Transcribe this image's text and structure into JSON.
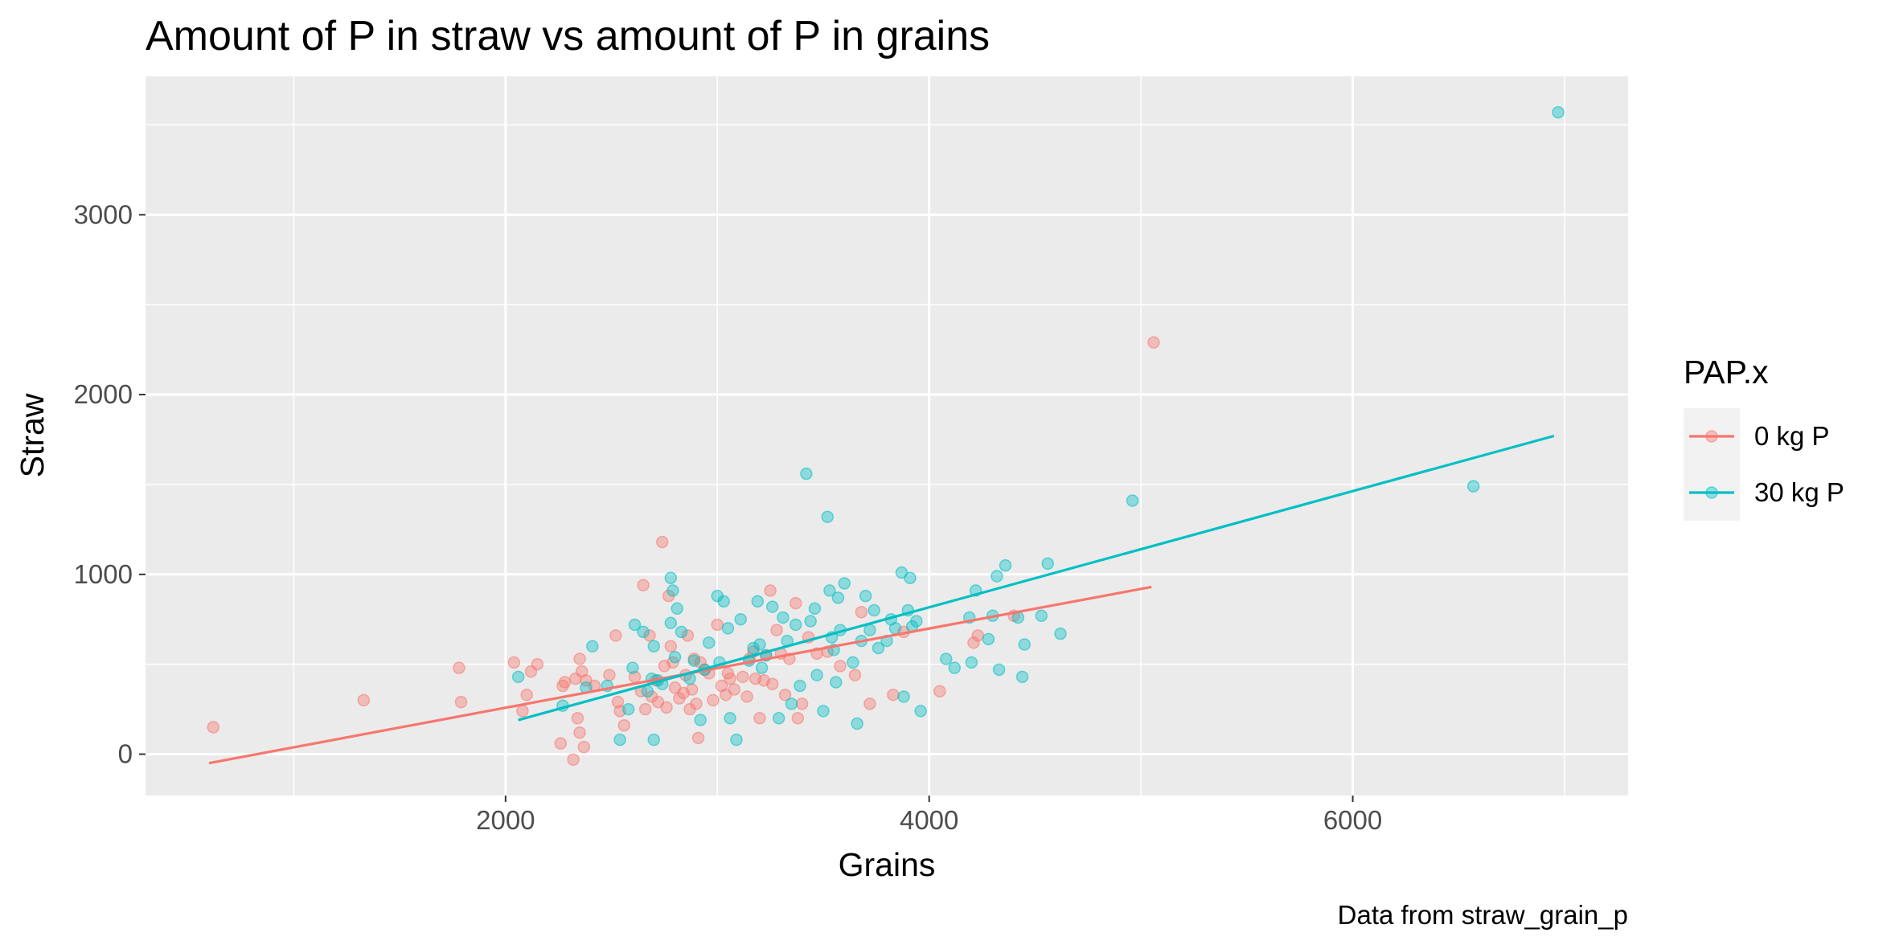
{
  "chart_data": {
    "type": "scatter",
    "title": "Amount of P in straw vs amount of P in grains",
    "xlabel": "Grains",
    "ylabel": "Straw",
    "caption": "Data from straw_grain_p",
    "xlim": [
      300,
      7300
    ],
    "ylim": [
      -230,
      3770
    ],
    "x_ticks": [
      2000,
      4000,
      6000
    ],
    "x_tick_labels": [
      "2000",
      "4000",
      "6000"
    ],
    "x_minor": [
      1000,
      3000,
      5000,
      7000
    ],
    "y_ticks": [
      0,
      1000,
      2000,
      3000
    ],
    "y_tick_labels": [
      "0",
      "1000",
      "2000",
      "3000"
    ],
    "y_minor": [
      500,
      1500,
      2500,
      3500
    ],
    "grid": true,
    "background": "#ebebeb",
    "legend": {
      "title": "PAP.x",
      "position": "right",
      "entries": [
        "0 kg P",
        "30 kg P"
      ]
    },
    "series": [
      {
        "name": "0 kg P",
        "color": "#f8766d",
        "trend": [
          [
            600,
            -50
          ],
          [
            5050,
            930
          ]
        ],
        "points": [
          [
            620,
            150
          ],
          [
            1330,
            300
          ],
          [
            1780,
            480
          ],
          [
            1790,
            290
          ],
          [
            2040,
            510
          ],
          [
            2080,
            240
          ],
          [
            2100,
            330
          ],
          [
            2120,
            460
          ],
          [
            2150,
            500
          ],
          [
            2260,
            60
          ],
          [
            2270,
            380
          ],
          [
            2280,
            400
          ],
          [
            2320,
            -30
          ],
          [
            2330,
            420
          ],
          [
            2340,
            200
          ],
          [
            2350,
            120
          ],
          [
            2350,
            530
          ],
          [
            2360,
            460
          ],
          [
            2370,
            40
          ],
          [
            2380,
            410
          ],
          [
            2420,
            380
          ],
          [
            2490,
            440
          ],
          [
            2520,
            660
          ],
          [
            2530,
            290
          ],
          [
            2540,
            240
          ],
          [
            2560,
            160
          ],
          [
            2610,
            430
          ],
          [
            2640,
            350
          ],
          [
            2650,
            940
          ],
          [
            2660,
            250
          ],
          [
            2680,
            660
          ],
          [
            2690,
            320
          ],
          [
            2710,
            410
          ],
          [
            2720,
            290
          ],
          [
            2740,
            1180
          ],
          [
            2750,
            490
          ],
          [
            2760,
            260
          ],
          [
            2770,
            880
          ],
          [
            2780,
            600
          ],
          [
            2790,
            510
          ],
          [
            2800,
            370
          ],
          [
            2820,
            310
          ],
          [
            2840,
            340
          ],
          [
            2850,
            440
          ],
          [
            2860,
            660
          ],
          [
            2870,
            250
          ],
          [
            2880,
            360
          ],
          [
            2890,
            530
          ],
          [
            2900,
            280
          ],
          [
            2910,
            90
          ],
          [
            2920,
            510
          ],
          [
            2940,
            470
          ],
          [
            2960,
            450
          ],
          [
            2980,
            300
          ],
          [
            3000,
            720
          ],
          [
            3020,
            380
          ],
          [
            3040,
            330
          ],
          [
            3050,
            450
          ],
          [
            3060,
            420
          ],
          [
            3080,
            360
          ],
          [
            3120,
            430
          ],
          [
            3140,
            320
          ],
          [
            3150,
            530
          ],
          [
            3170,
            570
          ],
          [
            3180,
            420
          ],
          [
            3200,
            200
          ],
          [
            3220,
            410
          ],
          [
            3230,
            550
          ],
          [
            3250,
            910
          ],
          [
            3260,
            390
          ],
          [
            3280,
            690
          ],
          [
            3300,
            560
          ],
          [
            3320,
            330
          ],
          [
            3340,
            530
          ],
          [
            3370,
            840
          ],
          [
            3380,
            200
          ],
          [
            3400,
            280
          ],
          [
            3430,
            650
          ],
          [
            3470,
            560
          ],
          [
            3520,
            570
          ],
          [
            3580,
            490
          ],
          [
            3650,
            440
          ],
          [
            3680,
            790
          ],
          [
            3720,
            280
          ],
          [
            3830,
            330
          ],
          [
            3880,
            680
          ],
          [
            4050,
            350
          ],
          [
            4210,
            620
          ],
          [
            4230,
            660
          ],
          [
            4400,
            770
          ],
          [
            5060,
            2290
          ]
        ]
      },
      {
        "name": "30 kg P",
        "color": "#00bfc4",
        "trend": [
          [
            2060,
            190
          ],
          [
            6950,
            1770
          ]
        ],
        "points": [
          [
            2060,
            430
          ],
          [
            2270,
            270
          ],
          [
            2380,
            370
          ],
          [
            2410,
            600
          ],
          [
            2480,
            380
          ],
          [
            2540,
            80
          ],
          [
            2580,
            250
          ],
          [
            2600,
            480
          ],
          [
            2610,
            720
          ],
          [
            2650,
            680
          ],
          [
            2670,
            350
          ],
          [
            2690,
            420
          ],
          [
            2700,
            600
          ],
          [
            2700,
            80
          ],
          [
            2720,
            410
          ],
          [
            2740,
            390
          ],
          [
            2780,
            980
          ],
          [
            2780,
            730
          ],
          [
            2790,
            910
          ],
          [
            2800,
            540
          ],
          [
            2810,
            810
          ],
          [
            2830,
            680
          ],
          [
            2870,
            420
          ],
          [
            2890,
            520
          ],
          [
            2920,
            190
          ],
          [
            2940,
            470
          ],
          [
            2960,
            620
          ],
          [
            3000,
            880
          ],
          [
            3010,
            510
          ],
          [
            3030,
            850
          ],
          [
            3050,
            700
          ],
          [
            3060,
            200
          ],
          [
            3090,
            80
          ],
          [
            3110,
            750
          ],
          [
            3150,
            520
          ],
          [
            3170,
            590
          ],
          [
            3190,
            850
          ],
          [
            3200,
            610
          ],
          [
            3210,
            480
          ],
          [
            3230,
            550
          ],
          [
            3260,
            820
          ],
          [
            3290,
            200
          ],
          [
            3310,
            760
          ],
          [
            3330,
            630
          ],
          [
            3350,
            280
          ],
          [
            3370,
            720
          ],
          [
            3390,
            380
          ],
          [
            3420,
            1560
          ],
          [
            3440,
            740
          ],
          [
            3460,
            810
          ],
          [
            3470,
            440
          ],
          [
            3500,
            240
          ],
          [
            3520,
            1320
          ],
          [
            3530,
            910
          ],
          [
            3540,
            650
          ],
          [
            3550,
            580
          ],
          [
            3560,
            400
          ],
          [
            3570,
            870
          ],
          [
            3580,
            690
          ],
          [
            3600,
            950
          ],
          [
            3640,
            510
          ],
          [
            3660,
            170
          ],
          [
            3680,
            630
          ],
          [
            3700,
            880
          ],
          [
            3720,
            690
          ],
          [
            3740,
            800
          ],
          [
            3760,
            590
          ],
          [
            3800,
            630
          ],
          [
            3820,
            750
          ],
          [
            3840,
            700
          ],
          [
            3870,
            1010
          ],
          [
            3880,
            320
          ],
          [
            3900,
            800
          ],
          [
            3910,
            980
          ],
          [
            3920,
            710
          ],
          [
            3940,
            740
          ],
          [
            3960,
            240
          ],
          [
            4080,
            530
          ],
          [
            4120,
            480
          ],
          [
            4190,
            760
          ],
          [
            4200,
            510
          ],
          [
            4220,
            910
          ],
          [
            4280,
            640
          ],
          [
            4300,
            770
          ],
          [
            4320,
            990
          ],
          [
            4330,
            470
          ],
          [
            4360,
            1050
          ],
          [
            4420,
            760
          ],
          [
            4440,
            430
          ],
          [
            4450,
            610
          ],
          [
            4530,
            770
          ],
          [
            4560,
            1060
          ],
          [
            4620,
            670
          ],
          [
            4960,
            1410
          ],
          [
            6570,
            1490
          ],
          [
            6970,
            3570
          ]
        ]
      }
    ]
  }
}
